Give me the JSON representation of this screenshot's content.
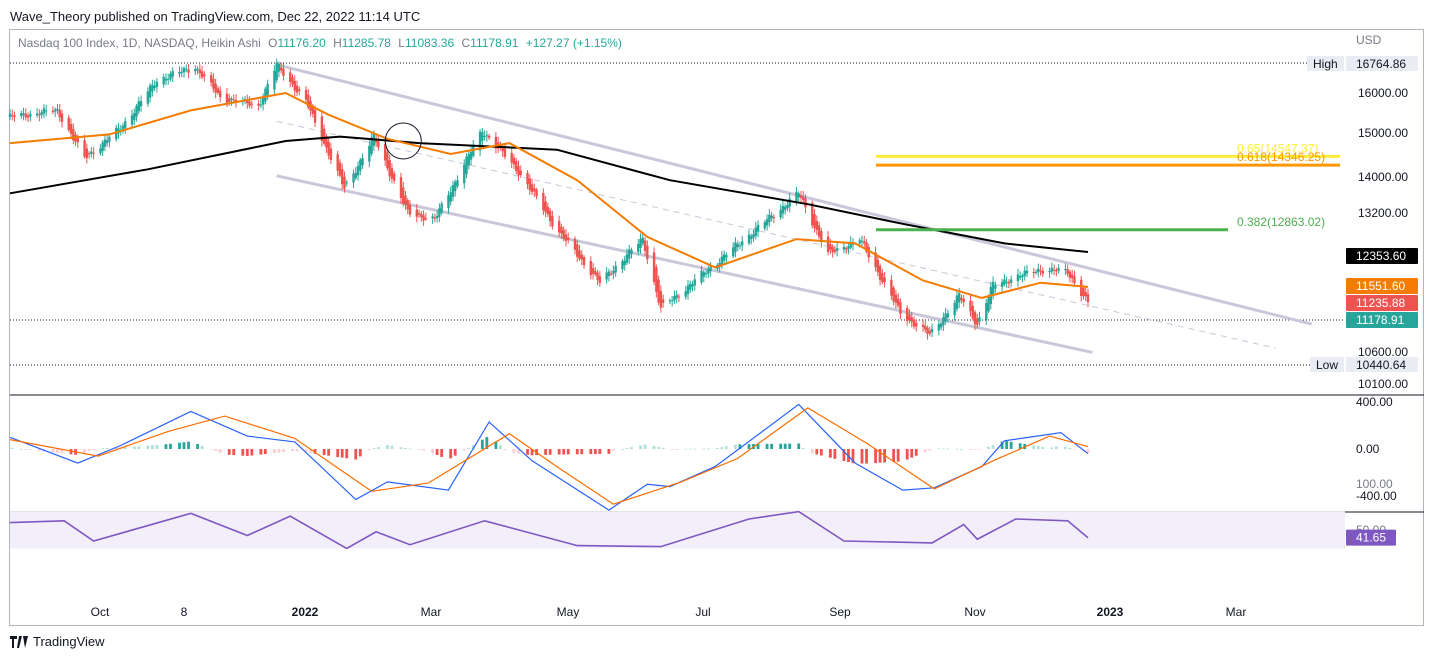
{
  "publisher_line": "Wave_Theory published on TradingView.com, Dec 22, 2022 11:14 UTC",
  "footer_brand": "TradingView",
  "currency": "USD",
  "legend": {
    "symbol": "Nasdaq 100 Index, 1D, NASDAQ, Heikin Ashi",
    "o_label": "O",
    "o_value": "11176.20",
    "h_label": "H",
    "h_value": "11285.78",
    "l_label": "L",
    "l_value": "11083.36",
    "c_label": "C",
    "c_value": "11178.91",
    "change": "+127.27 (+1.15%)"
  },
  "colors": {
    "up": "#26a69a",
    "down": "#ef5350",
    "ema50": "#f57c00",
    "ema200": "#000000",
    "channel": "#c9c7d9",
    "fib_382": "#4caf50",
    "fib_618": "#ff9800",
    "fib_65": "#ffeb3b",
    "macd": "#2962ff",
    "signal": "#ff6d00",
    "rsi": "#7e57c2"
  },
  "chart_data": [
    {
      "type": "candlestick",
      "title": "Nasdaq 100 Index, 1D, NASDAQ, Heikin Ashi",
      "x_ticks": [
        "Oct",
        "8",
        "2022",
        "Mar",
        "May",
        "Jul",
        "Sep",
        "Nov",
        "2023",
        "Mar"
      ],
      "y_ticks": [
        16000,
        15000,
        14000,
        13200,
        10600,
        10100
      ],
      "y_tick_labels": [
        "16000.00",
        "15000.00",
        "14000.00",
        "13200.00",
        "10600.00",
        "10100.00"
      ],
      "ylim": [
        10050,
        16900
      ],
      "price_series": [
        {
          "date": "2021-09-01",
          "close": 15450
        },
        {
          "date": "2021-09-22",
          "close": 15600
        },
        {
          "date": "2021-10-04",
          "close": 14500
        },
        {
          "date": "2021-10-20",
          "close": 15200
        },
        {
          "date": "2021-11-05",
          "close": 16300
        },
        {
          "date": "2021-11-22",
          "close": 16600
        },
        {
          "date": "2021-12-03",
          "close": 15900
        },
        {
          "date": "2021-12-20",
          "close": 15700
        },
        {
          "date": "2021-12-28",
          "close": 16650
        },
        {
          "date": "2022-01-10",
          "close": 15800
        },
        {
          "date": "2022-01-27",
          "close": 13800
        },
        {
          "date": "2022-02-09",
          "close": 15000
        },
        {
          "date": "2022-02-24",
          "close": 13250
        },
        {
          "date": "2022-03-08",
          "close": 13100
        },
        {
          "date": "2022-03-29",
          "close": 15150
        },
        {
          "date": "2022-04-14",
          "close": 14200
        },
        {
          "date": "2022-05-02",
          "close": 12800
        },
        {
          "date": "2022-05-20",
          "close": 11650
        },
        {
          "date": "2022-06-08",
          "close": 12650
        },
        {
          "date": "2022-06-16",
          "close": 11050
        },
        {
          "date": "2022-07-08",
          "close": 12000
        },
        {
          "date": "2022-08-16",
          "close": 13700
        },
        {
          "date": "2022-08-29",
          "close": 12300
        },
        {
          "date": "2022-09-12",
          "close": 12650
        },
        {
          "date": "2022-09-30",
          "close": 10950
        },
        {
          "date": "2022-10-13",
          "close": 10450
        },
        {
          "date": "2022-10-26",
          "close": 11350
        },
        {
          "date": "2022-11-03",
          "close": 10700
        },
        {
          "date": "2022-11-10",
          "close": 11600
        },
        {
          "date": "2022-11-30",
          "close": 11950
        },
        {
          "date": "2022-12-13",
          "close": 11900
        },
        {
          "date": "2022-12-22",
          "close": 11179
        }
      ],
      "ema_50": [
        {
          "date": "2021-09-01",
          "value": 14850
        },
        {
          "date": "2021-10-15",
          "value": 15050
        },
        {
          "date": "2021-11-20",
          "value": 15600
        },
        {
          "date": "2022-01-01",
          "value": 16000
        },
        {
          "date": "2022-01-20",
          "value": 15500
        },
        {
          "date": "2022-02-15",
          "value": 14950
        },
        {
          "date": "2022-03-15",
          "value": 14600
        },
        {
          "date": "2022-04-10",
          "value": 14850
        },
        {
          "date": "2022-05-10",
          "value": 14000
        },
        {
          "date": "2022-06-10",
          "value": 12700
        },
        {
          "date": "2022-07-10",
          "value": 12000
        },
        {
          "date": "2022-08-15",
          "value": 12650
        },
        {
          "date": "2022-09-10",
          "value": 12550
        },
        {
          "date": "2022-10-10",
          "value": 11700
        },
        {
          "date": "2022-11-05",
          "value": 11300
        },
        {
          "date": "2022-12-01",
          "value": 11650
        },
        {
          "date": "2022-12-22",
          "value": 11552
        }
      ],
      "ema_200": [
        {
          "date": "2021-09-01",
          "value": 13700
        },
        {
          "date": "2021-11-01",
          "value": 14250
        },
        {
          "date": "2022-01-01",
          "value": 14900
        },
        {
          "date": "2022-01-25",
          "value": 15000
        },
        {
          "date": "2022-03-01",
          "value": 14850
        },
        {
          "date": "2022-05-01",
          "value": 14700
        },
        {
          "date": "2022-06-20",
          "value": 14000
        },
        {
          "date": "2022-08-20",
          "value": 13450
        },
        {
          "date": "2022-10-01",
          "value": 13000
        },
        {
          "date": "2022-11-15",
          "value": 12550
        },
        {
          "date": "2022-12-22",
          "value": 12354
        }
      ],
      "channel": {
        "upper": [
          {
            "date": "2021-12-28",
            "value": 16650
          },
          {
            "date": "2023-03-31",
            "value": 10700
          }
        ],
        "lower": [
          {
            "date": "2021-12-28",
            "value": 14100
          },
          {
            "date": "2022-12-24",
            "value": 10050
          }
        ],
        "mid_dashed": [
          {
            "date": "2021-12-28",
            "value": 15350
          },
          {
            "date": "2023-03-15",
            "value": 10150
          }
        ]
      },
      "fib_levels": [
        {
          "label": "0.65(14547.37)",
          "value": 14547.37,
          "start_date": "2022-09-10"
        },
        {
          "label": "0.618(14346.25)",
          "value": 14346.25,
          "start_date": "2022-09-10"
        },
        {
          "label": "0.382(12863.02)",
          "value": 12863.02,
          "start_date": "2022-09-10"
        }
      ],
      "high": {
        "label": "High",
        "value": "16764.86"
      },
      "low": {
        "label": "Low",
        "value": "10440.64"
      },
      "price_tags": [
        {
          "value": "12353.60",
          "kind": "ema200"
        },
        {
          "value": "11551.60",
          "kind": "ema50"
        },
        {
          "value": "11235.88",
          "kind": "prev"
        },
        {
          "value": "11178.91",
          "kind": "last"
        }
      ],
      "annotations": [
        {
          "type": "circle",
          "date": "2022-02-22",
          "value": 14900
        }
      ]
    },
    {
      "type": "line",
      "title": "MACD",
      "y_ticks": [
        400,
        0,
        -400
      ],
      "y_tick_labels": [
        "400.00",
        "0.00",
        "-400.00"
      ],
      "ylim": [
        -520,
        420
      ],
      "macd_series": [
        {
          "date": "2021-09-01",
          "value": 100
        },
        {
          "date": "2021-10-01",
          "value": -120
        },
        {
          "date": "2021-10-20",
          "value": 30
        },
        {
          "date": "2021-11-20",
          "value": 320
        },
        {
          "date": "2021-12-15",
          "value": 110
        },
        {
          "date": "2022-01-05",
          "value": 60
        },
        {
          "date": "2022-02-01",
          "value": -430
        },
        {
          "date": "2022-02-15",
          "value": -280
        },
        {
          "date": "2022-03-14",
          "value": -350
        },
        {
          "date": "2022-04-01",
          "value": 230
        },
        {
          "date": "2022-04-20",
          "value": -100
        },
        {
          "date": "2022-05-24",
          "value": -520
        },
        {
          "date": "2022-06-10",
          "value": -300
        },
        {
          "date": "2022-06-20",
          "value": -320
        },
        {
          "date": "2022-07-10",
          "value": -150
        },
        {
          "date": "2022-08-16",
          "value": 380
        },
        {
          "date": "2022-09-10",
          "value": -120
        },
        {
          "date": "2022-10-01",
          "value": -350
        },
        {
          "date": "2022-10-15",
          "value": -330
        },
        {
          "date": "2022-11-05",
          "value": -150
        },
        {
          "date": "2022-11-15",
          "value": 70
        },
        {
          "date": "2022-12-10",
          "value": 140
        },
        {
          "date": "2022-12-22",
          "value": -40
        }
      ],
      "signal_series": [
        {
          "date": "2021-09-01",
          "value": 80
        },
        {
          "date": "2021-10-10",
          "value": -60
        },
        {
          "date": "2021-11-10",
          "value": 150
        },
        {
          "date": "2021-12-05",
          "value": 280
        },
        {
          "date": "2022-01-05",
          "value": 90
        },
        {
          "date": "2022-02-08",
          "value": -360
        },
        {
          "date": "2022-03-05",
          "value": -290
        },
        {
          "date": "2022-04-10",
          "value": 130
        },
        {
          "date": "2022-05-01",
          "value": -150
        },
        {
          "date": "2022-05-26",
          "value": -470
        },
        {
          "date": "2022-06-25",
          "value": -280
        },
        {
          "date": "2022-07-20",
          "value": -80
        },
        {
          "date": "2022-08-20",
          "value": 350
        },
        {
          "date": "2022-09-15",
          "value": 50
        },
        {
          "date": "2022-10-15",
          "value": -340
        },
        {
          "date": "2022-11-10",
          "value": -100
        },
        {
          "date": "2022-12-05",
          "value": 110
        },
        {
          "date": "2022-12-22",
          "value": 20
        }
      ]
    },
    {
      "type": "line",
      "title": "RSI",
      "y_ticks": [
        100,
        50
      ],
      "y_tick_labels": [
        "100.00",
        "50.00"
      ],
      "ylim": [
        0,
        100
      ],
      "band": [
        30,
        70
      ],
      "rsi_series": [
        {
          "date": "2021-09-01",
          "value": 58
        },
        {
          "date": "2021-09-25",
          "value": 60
        },
        {
          "date": "2021-10-08",
          "value": 38
        },
        {
          "date": "2021-11-20",
          "value": 68
        },
        {
          "date": "2021-12-15",
          "value": 44
        },
        {
          "date": "2022-01-03",
          "value": 65
        },
        {
          "date": "2022-01-28",
          "value": 30
        },
        {
          "date": "2022-02-10",
          "value": 48
        },
        {
          "date": "2022-02-25",
          "value": 34
        },
        {
          "date": "2022-03-30",
          "value": 60
        },
        {
          "date": "2022-05-10",
          "value": 33
        },
        {
          "date": "2022-06-16",
          "value": 32
        },
        {
          "date": "2022-07-25",
          "value": 62
        },
        {
          "date": "2022-08-16",
          "value": 70
        },
        {
          "date": "2022-09-05",
          "value": 38
        },
        {
          "date": "2022-10-14",
          "value": 36
        },
        {
          "date": "2022-10-28",
          "value": 56
        },
        {
          "date": "2022-11-03",
          "value": 40
        },
        {
          "date": "2022-11-20",
          "value": 62
        },
        {
          "date": "2022-12-13",
          "value": 60
        },
        {
          "date": "2022-12-22",
          "value": 41.65
        }
      ],
      "last_value": "41.65"
    }
  ]
}
